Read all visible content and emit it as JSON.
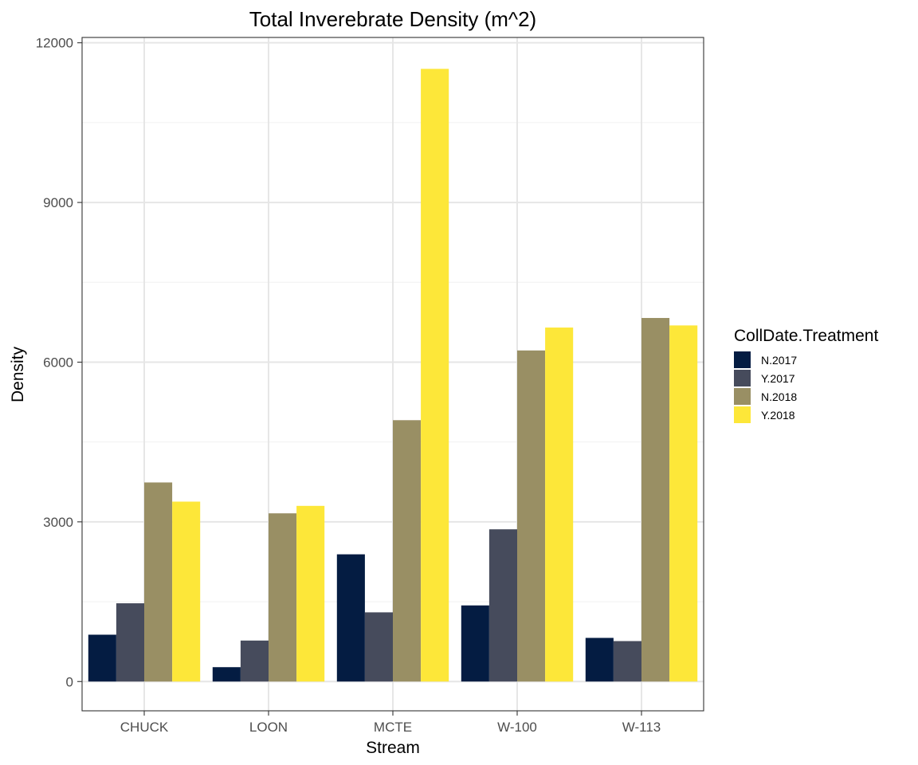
{
  "chart_data": {
    "type": "bar",
    "title": "Total Inverebrate Density (m^2)",
    "xlabel": "Stream",
    "ylabel": "Density",
    "categories": [
      "CHUCK",
      "LOON",
      "MCTE",
      "W-100",
      "W-113"
    ],
    "ylim": [
      -550,
      12100
    ],
    "yticks": [
      0,
      3000,
      6000,
      9000,
      12000
    ],
    "grid": true,
    "legend": {
      "title": "CollDate.Treatment",
      "position": "right"
    },
    "series": [
      {
        "name": "N.2017",
        "color": "#041c42",
        "values": [
          880,
          270,
          2390,
          1430,
          820
        ]
      },
      {
        "name": "Y.2017",
        "color": "#464b5c",
        "values": [
          1470,
          770,
          1300,
          2860,
          760
        ]
      },
      {
        "name": "N.2018",
        "color": "#998f64",
        "values": [
          3740,
          3160,
          4910,
          6220,
          6830
        ]
      },
      {
        "name": "Y.2018",
        "color": "#fde739",
        "values": [
          3380,
          3300,
          11510,
          6650,
          6690
        ]
      }
    ]
  }
}
